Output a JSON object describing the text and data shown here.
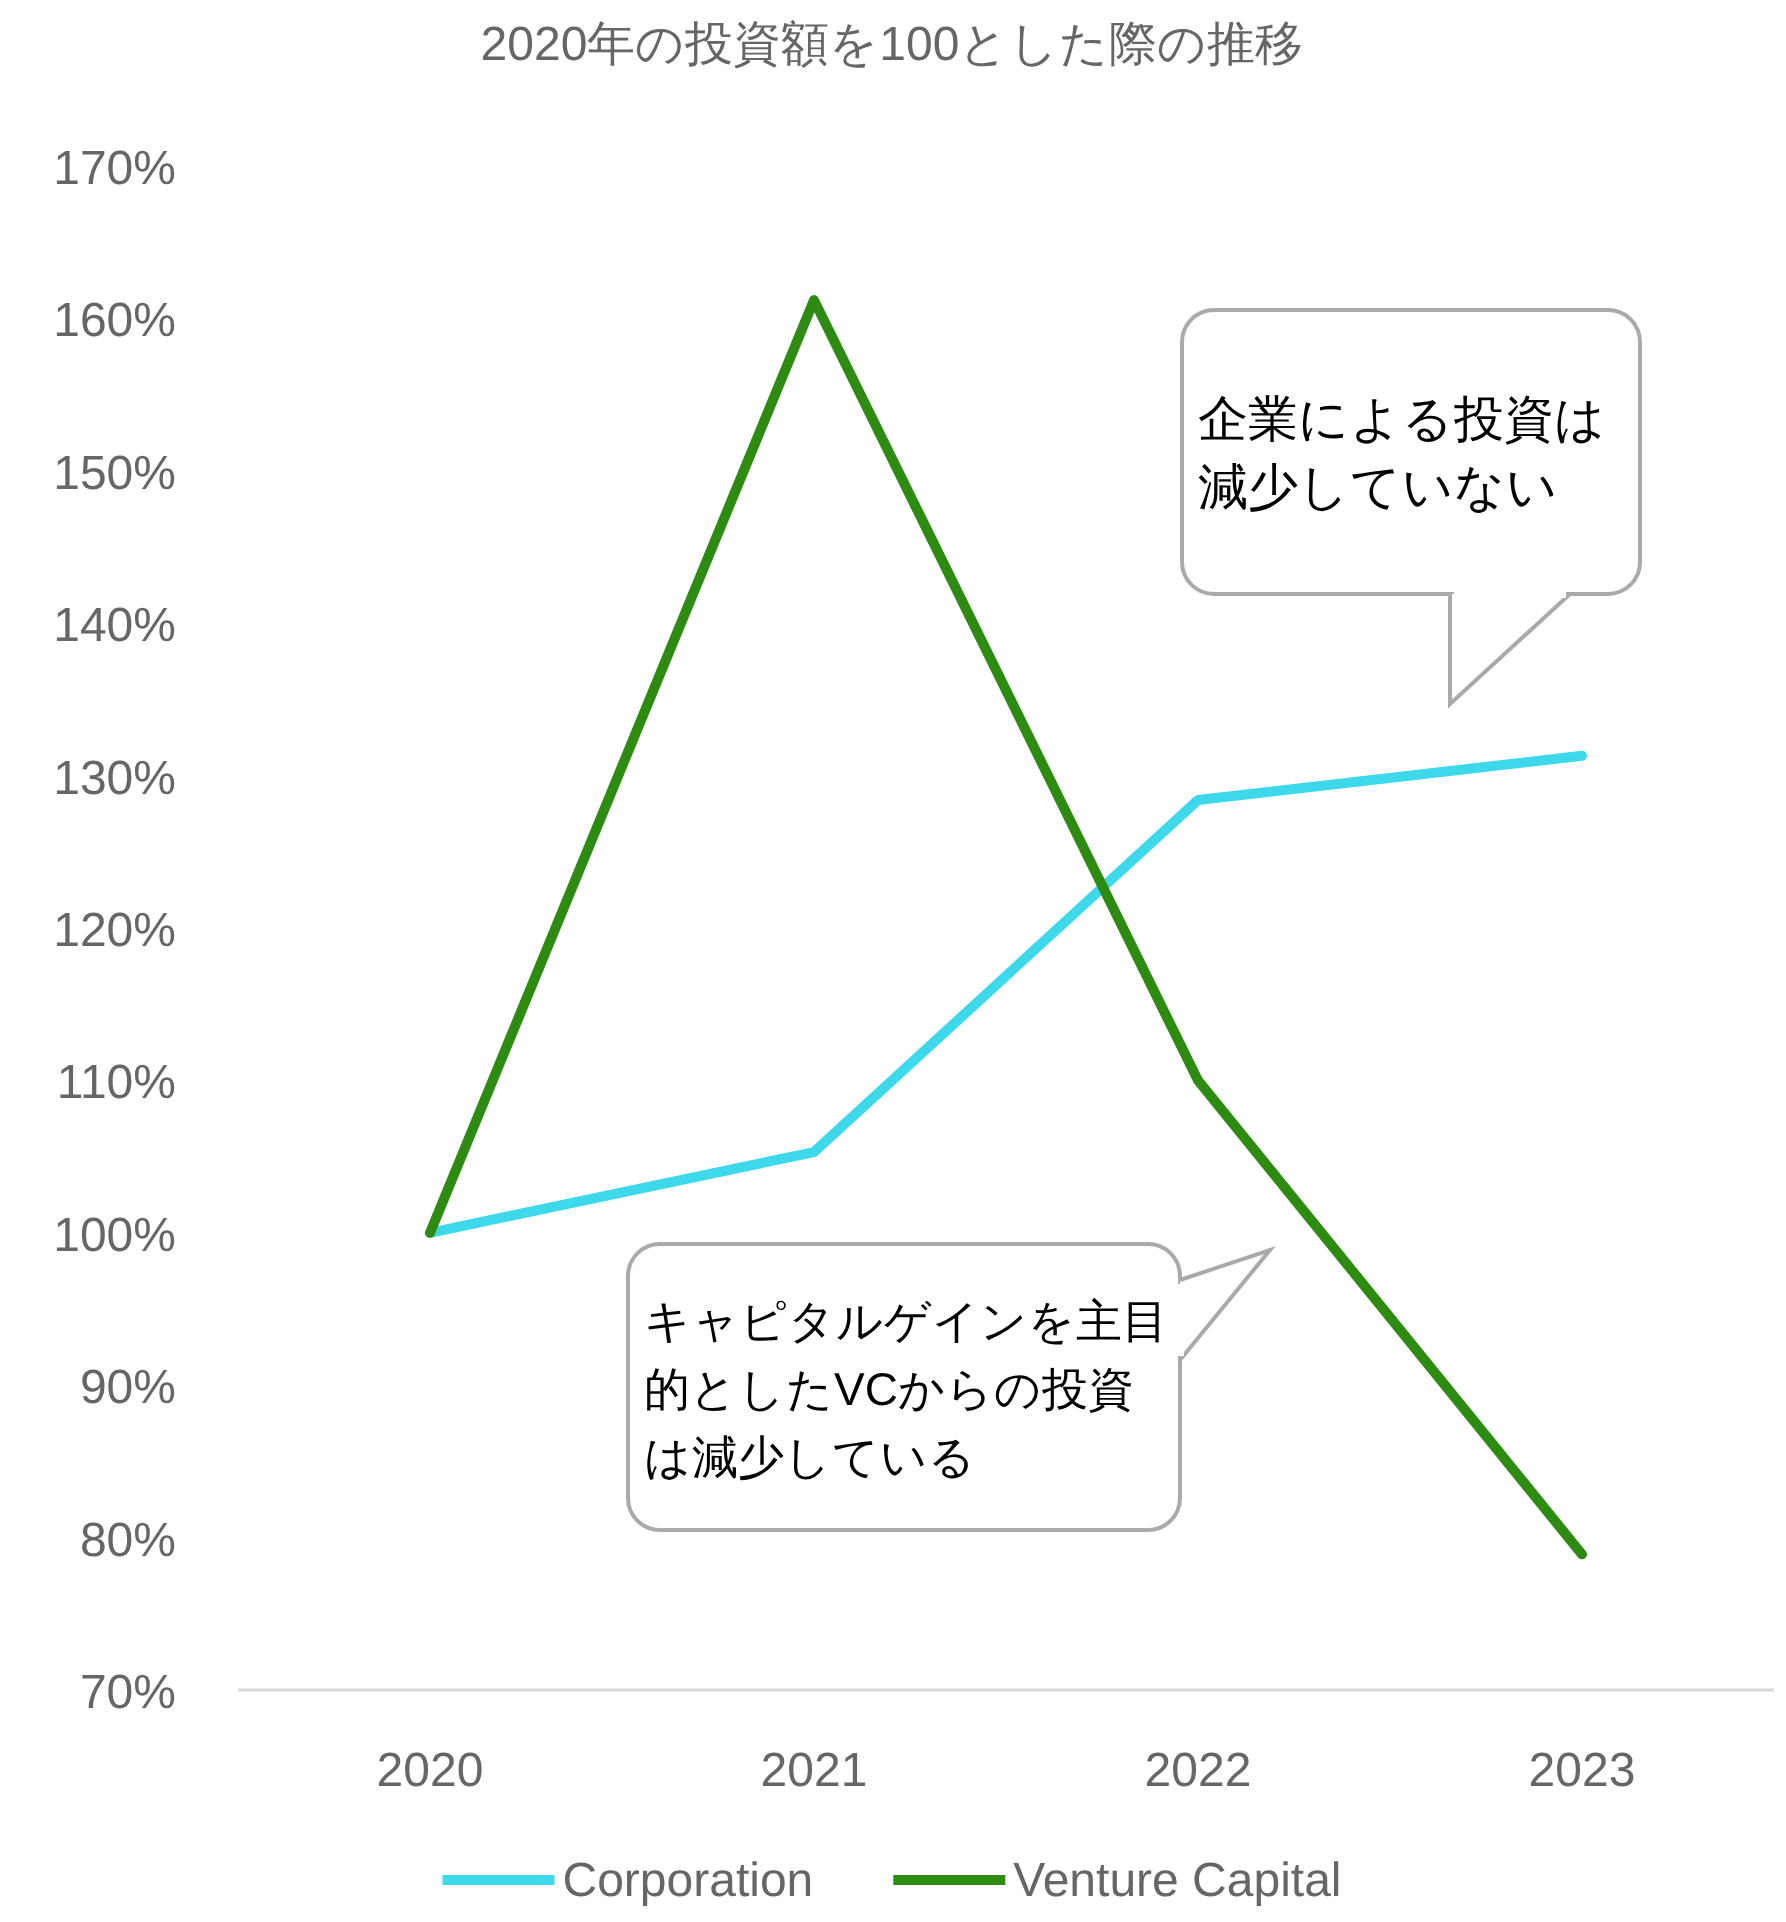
{
  "chart_data": {
    "type": "line",
    "title": "2020年の投資額を100とした際の推移",
    "categories": [
      "2020",
      "2021",
      "2022",
      "2023"
    ],
    "series": [
      {
        "name": "Corporation",
        "color": "#3dd9ea",
        "values": [
          100,
          105.3,
          128.4,
          131.3
        ]
      },
      {
        "name": "Venture Capital",
        "color": "#2e8b12",
        "values": [
          100,
          161.2,
          110,
          78.9
        ]
      }
    ],
    "ylim": [
      70,
      170
    ],
    "yticks": [
      {
        "value": 70,
        "label": "70%"
      },
      {
        "value": 80,
        "label": "80%"
      },
      {
        "value": 90,
        "label": "90%"
      },
      {
        "value": 100,
        "label": "100%"
      },
      {
        "value": 110,
        "label": "110%"
      },
      {
        "value": 120,
        "label": "120%"
      },
      {
        "value": 130,
        "label": "130%"
      },
      {
        "value": 140,
        "label": "140%"
      },
      {
        "value": 150,
        "label": "150%"
      },
      {
        "value": 160,
        "label": "160%"
      },
      {
        "value": 170,
        "label": "170%"
      }
    ],
    "grid": false,
    "legend": "bottom",
    "marker": "none",
    "line_style": "solid",
    "annotations": [
      "企業による投資は減少していない",
      "キャピタルゲインを主目的としたVCからの投資は減少している"
    ]
  }
}
